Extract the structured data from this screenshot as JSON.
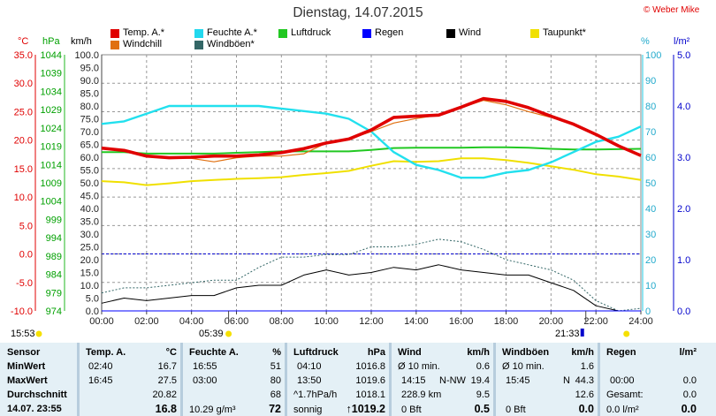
{
  "title": "Dienstag, 14.07.2015",
  "copyright": "© Weber Mike",
  "legend": [
    {
      "label": "Temp. A.*",
      "color": "#e00000"
    },
    {
      "label": "Feuchte A.*",
      "color": "#22d8ee"
    },
    {
      "label": "Luftdruck",
      "color": "#22c822"
    },
    {
      "label": "Regen",
      "color": "#0000ff"
    },
    {
      "label": "Wind",
      "color": "#000000"
    },
    {
      "label": "Taupunkt*",
      "color": "#f0e000"
    },
    {
      "label": "Windchill",
      "color": "#e07010"
    },
    {
      "label": "Windböen*",
      "color": "#336666"
    }
  ],
  "axis_units": {
    "temp": "°C",
    "pressure": "hPa",
    "wind": "km/h",
    "humidity": "%",
    "rain": "l/m²"
  },
  "sun": {
    "rise_left": "15:53",
    "rise": "05:39",
    "set": "21:33"
  },
  "chart_data": {
    "type": "line",
    "x": [
      "00:00",
      "01:00",
      "02:00",
      "03:00",
      "04:00",
      "05:00",
      "06:00",
      "07:00",
      "08:00",
      "09:00",
      "10:00",
      "11:00",
      "12:00",
      "13:00",
      "14:00",
      "15:00",
      "16:00",
      "17:00",
      "18:00",
      "19:00",
      "20:00",
      "21:00",
      "22:00",
      "23:00",
      "24:00"
    ],
    "x_ticks": [
      "00:00",
      "02:00",
      "04:00",
      "06:00",
      "08:00",
      "10:00",
      "12:00",
      "14:00",
      "16:00",
      "18:00",
      "20:00",
      "22:00",
      "24:00"
    ],
    "axes": {
      "temp_ticks": [
        "35.0",
        "30.0",
        "25.0",
        "20.0",
        "15.0",
        "10.0",
        "5.0",
        "0.0",
        "-5.0",
        "-10.0"
      ],
      "pressure_ticks": [
        "1044",
        "1039",
        "1034",
        "1029",
        "1024",
        "1019",
        "1014",
        "1009",
        "1004",
        "999",
        "994",
        "989",
        "984",
        "979",
        "974"
      ],
      "wind_ticks": [
        "100.0",
        "95.0",
        "90.0",
        "85.0",
        "80.0",
        "75.0",
        "70.0",
        "65.0",
        "60.0",
        "55.0",
        "50.0",
        "45.0",
        "40.0",
        "35.0",
        "30.0",
        "25.0",
        "20.0",
        "15.0",
        "10.0",
        "5.0",
        "0.0"
      ],
      "humidity_ticks": [
        "100",
        "90",
        "80",
        "70",
        "60",
        "50",
        "40",
        "30",
        "20",
        "10",
        "0"
      ],
      "rain_ticks": [
        "5.0",
        "4.0",
        "3.0",
        "2.0",
        "1.0",
        "0.0"
      ]
    },
    "series": [
      {
        "name": "Temp. A.*",
        "axis": "temp",
        "values": [
          18.6,
          18.2,
          17.2,
          16.9,
          17.0,
          17.2,
          17.2,
          17.4,
          17.8,
          18.5,
          19.5,
          20.2,
          21.8,
          24.0,
          24.2,
          24.4,
          25.8,
          27.3,
          26.8,
          25.7,
          24.2,
          22.8,
          21.0,
          19.0,
          17.3
        ]
      },
      {
        "name": "Windchill",
        "axis": "temp",
        "values": [
          18.6,
          18.2,
          17.2,
          16.9,
          16.8,
          16.2,
          16.9,
          17.2,
          17.2,
          17.6,
          19.5,
          20.2,
          21.5,
          23.0,
          23.8,
          24.4,
          25.7,
          27.0,
          26.2,
          25.0,
          24.0,
          22.8,
          21.0,
          19.0,
          17.3
        ]
      },
      {
        "name": "Taupunkt*",
        "axis": "temp",
        "values": [
          12.8,
          12.6,
          12.1,
          12.4,
          12.8,
          13.0,
          13.2,
          13.3,
          13.5,
          13.9,
          14.2,
          14.6,
          15.5,
          16.3,
          16.2,
          16.3,
          16.8,
          16.8,
          16.5,
          16.0,
          15.4,
          14.8,
          14.0,
          13.6,
          13.0
        ]
      },
      {
        "name": "Feuchte A.*",
        "axis": "humidity",
        "values": [
          73,
          74,
          77,
          80,
          80,
          80,
          80,
          80,
          79,
          78,
          77,
          75,
          70,
          62,
          57,
          55,
          52,
          52,
          54,
          55,
          58,
          62,
          66,
          68,
          72
        ]
      },
      {
        "name": "Luftdruck",
        "axis": "pressure",
        "values": [
          1017.4,
          1017.4,
          1017.0,
          1017.0,
          1017.0,
          1017.0,
          1017.2,
          1017.4,
          1017.6,
          1017.6,
          1017.6,
          1017.6,
          1018.0,
          1018.5,
          1018.6,
          1018.6,
          1018.6,
          1018.7,
          1018.7,
          1018.6,
          1018.3,
          1018.1,
          1018.1,
          1018.2,
          1018.3
        ]
      },
      {
        "name": "Wind",
        "axis": "wind",
        "values": [
          3,
          5,
          4,
          5,
          6,
          6,
          9,
          10,
          10,
          14,
          16,
          14,
          15,
          17,
          16,
          18,
          16,
          15,
          14,
          14,
          11,
          8,
          2,
          0,
          0
        ]
      },
      {
        "name": "Windböen*",
        "axis": "wind",
        "values": [
          7,
          9,
          9,
          10,
          11,
          12,
          12,
          17,
          21,
          21,
          22,
          22,
          25,
          25,
          26,
          28,
          27,
          24,
          20,
          18,
          16,
          12,
          4,
          0,
          1
        ]
      },
      {
        "name": "Regen",
        "axis": "rain",
        "values": [
          0,
          0,
          0,
          0,
          0,
          0,
          0,
          0,
          0,
          0,
          0,
          0,
          0,
          0,
          0,
          0,
          0,
          0,
          0,
          0,
          0,
          0,
          0,
          0,
          0
        ]
      }
    ],
    "ylim_temp": [
      -10,
      35
    ],
    "ylim_wind": [
      0,
      100
    ],
    "ylim_humidity": [
      0,
      100
    ],
    "ylim_pressure": [
      974,
      1044
    ],
    "ylim_rain": [
      0,
      5
    ],
    "grid": true
  },
  "stats": {
    "sensor": {
      "head": "Sensor",
      "min": "MinWert",
      "max": "MaxWert",
      "avg": "Durchschnitt",
      "now": "14.07. 23:55"
    },
    "temp": {
      "head": "Temp. A.",
      "unit": "°C",
      "min_time": "02:40",
      "min_val": "16.7",
      "max_time": "16:45",
      "max_val": "27.5",
      "avg_val": "20.82",
      "now_val": "16.8"
    },
    "humidity": {
      "head": "Feuchte A.",
      "unit": "%",
      "min_time": "16:55",
      "min_val": "51",
      "max_time": "03:00",
      "max_val": "80",
      "avg_val": "68",
      "now_extra": "10.29 g/m³",
      "now_val": "72"
    },
    "pressure": {
      "head": "Luftdruck",
      "unit": "hPa",
      "min_time": "04:10",
      "min_val": "1016.8",
      "max_time": "13:50",
      "max_val": "1019.6",
      "avg_extra": "^1.7hPa/h",
      "avg_val": "1018.1",
      "now_extra": "sonnig",
      "now_val": "↑1019.2"
    },
    "wind": {
      "head": "Wind",
      "unit": "km/h",
      "min_label": "Ø 10 min.",
      "min_val": "0.6",
      "max_time": "14:15",
      "max_dir": "N-NW",
      "max_val": "19.4",
      "avg_extra": "228.9 km",
      "avg_val": "9.5",
      "now_extra": "0 Bft",
      "now_val": "0.5"
    },
    "gust": {
      "head": "Windböen",
      "unit": "km/h",
      "min_label": "Ø 10 min.",
      "min_val": "1.6",
      "max_time": "15:45",
      "max_dir": "N",
      "max_val": "44.3",
      "avg_val": "12.6",
      "now_extra": "0 Bft",
      "now_val": "0.0"
    },
    "rain": {
      "head": "Regen",
      "unit": "l/m²",
      "max_time": "00:00",
      "max_val": "0.0",
      "avg_label": "Gesamt:",
      "avg_val": "0.0",
      "now_extra": "0.0 l/m²",
      "now_val": "0.0"
    }
  }
}
